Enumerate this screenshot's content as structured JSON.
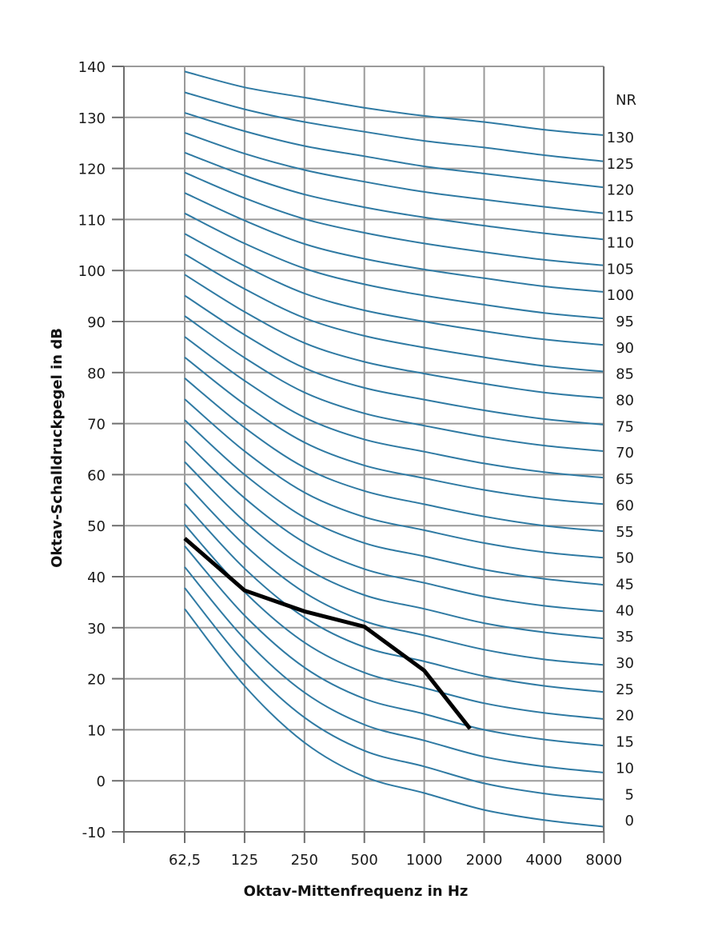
{
  "chart_data": {
    "type": "line",
    "xlabel": "Oktav-Mittenfrequenz in Hz",
    "ylabel": "Oktav-Schalldruckpegel in dB",
    "x_scale": "log2 (octave bands)",
    "x_ticks": [
      "62,5",
      "125",
      "250",
      "500",
      "1000",
      "2000",
      "4000",
      "8000"
    ],
    "x_values": [
      62.5,
      125,
      250,
      500,
      1000,
      2000,
      4000,
      8000
    ],
    "ylim": [
      -10,
      140
    ],
    "y_ticks": [
      140,
      130,
      120,
      110,
      100,
      90,
      80,
      70,
      60,
      50,
      40,
      30,
      20,
      10,
      0,
      -10
    ],
    "grid": true,
    "right_axis_title": "NR",
    "nr_labels": [
      "130",
      "125",
      "120",
      "115",
      "110",
      "105",
      "100",
      "95",
      "90",
      "85",
      "80",
      "75",
      "70",
      "65",
      "60",
      "55",
      "50",
      "45",
      "40",
      "35",
      "30",
      "25",
      "20",
      "15",
      "10",
      "5",
      "0"
    ],
    "nr_curves": [
      {
        "nr": 130,
        "values": [
          139.0,
          135.9,
          133.9,
          131.9,
          130.3,
          129.1,
          127.6,
          126.5
        ]
      },
      {
        "nr": 125,
        "values": [
          134.9,
          131.6,
          129.1,
          127.2,
          125.4,
          124.1,
          122.6,
          121.4
        ]
      },
      {
        "nr": 120,
        "values": [
          130.9,
          127.3,
          124.4,
          122.4,
          120.4,
          119.0,
          117.6,
          116.3
        ]
      },
      {
        "nr": 115,
        "values": [
          127.0,
          122.9,
          119.7,
          117.4,
          115.4,
          113.9,
          112.5,
          111.2
        ]
      },
      {
        "nr": 110,
        "values": [
          123.1,
          118.6,
          114.9,
          112.4,
          110.4,
          108.8,
          107.3,
          106.1
        ]
      },
      {
        "nr": 105,
        "values": [
          119.2,
          114.2,
          110.1,
          107.4,
          105.3,
          103.6,
          102.1,
          101.0
        ]
      },
      {
        "nr": 100,
        "values": [
          115.2,
          109.8,
          105.2,
          102.3,
          100.2,
          98.5,
          96.9,
          95.8
        ]
      },
      {
        "nr": 95,
        "values": [
          111.2,
          105.3,
          100.4,
          97.3,
          95.1,
          93.3,
          91.7,
          90.6
        ]
      },
      {
        "nr": 90,
        "values": [
          107.2,
          100.9,
          95.5,
          92.2,
          90.0,
          88.1,
          86.5,
          85.4
        ]
      },
      {
        "nr": 85,
        "values": [
          103.2,
          96.4,
          90.7,
          87.2,
          84.9,
          83.0,
          81.3,
          80.2
        ]
      },
      {
        "nr": 80,
        "values": [
          99.2,
          91.9,
          85.8,
          82.1,
          79.8,
          77.8,
          76.1,
          75.0
        ]
      },
      {
        "nr": 75,
        "values": [
          95.1,
          87.4,
          80.9,
          77.0,
          74.7,
          72.6,
          70.9,
          69.8
        ]
      },
      {
        "nr": 70,
        "values": [
          91.1,
          82.9,
          76.1,
          72.0,
          69.6,
          67.4,
          65.7,
          64.6
        ]
      },
      {
        "nr": 65,
        "values": [
          87.0,
          78.4,
          71.2,
          66.9,
          64.5,
          62.2,
          60.5,
          59.4
        ]
      },
      {
        "nr": 60,
        "values": [
          83.0,
          73.8,
          66.3,
          61.8,
          59.3,
          57.0,
          55.3,
          54.2
        ]
      },
      {
        "nr": 55,
        "values": [
          78.9,
          69.2,
          61.4,
          56.8,
          54.2,
          51.8,
          50.0,
          48.9
        ]
      },
      {
        "nr": 50,
        "values": [
          74.8,
          64.6,
          56.5,
          51.7,
          49.1,
          46.6,
          44.8,
          43.7
        ]
      },
      {
        "nr": 45,
        "values": [
          70.7,
          60.0,
          51.6,
          46.6,
          44.0,
          41.4,
          39.6,
          38.4
        ]
      },
      {
        "nr": 40,
        "values": [
          66.6,
          55.4,
          46.7,
          41.5,
          38.8,
          36.1,
          34.3,
          33.2
        ]
      },
      {
        "nr": 35,
        "values": [
          62.5,
          50.8,
          41.8,
          36.4,
          33.7,
          30.9,
          29.1,
          27.9
        ]
      },
      {
        "nr": 30,
        "values": [
          58.4,
          46.2,
          36.9,
          31.3,
          28.5,
          25.7,
          23.8,
          22.7
        ]
      },
      {
        "nr": 25,
        "values": [
          54.3,
          41.6,
          32.0,
          26.2,
          23.4,
          20.5,
          18.6,
          17.4
        ]
      },
      {
        "nr": 20,
        "values": [
          50.2,
          37.0,
          27.1,
          21.2,
          18.2,
          15.2,
          13.3,
          12.1
        ]
      },
      {
        "nr": 15,
        "values": [
          46.0,
          32.4,
          22.2,
          16.1,
          13.1,
          10.0,
          8.1,
          6.9
        ]
      },
      {
        "nr": 10,
        "values": [
          41.9,
          27.8,
          17.3,
          11.0,
          7.9,
          4.7,
          2.8,
          1.6
        ]
      },
      {
        "nr": 5,
        "values": [
          37.8,
          23.2,
          12.4,
          5.9,
          2.8,
          -0.5,
          -2.5,
          -3.7
        ]
      },
      {
        "nr": 0,
        "values": [
          33.7,
          18.6,
          7.5,
          0.8,
          -2.4,
          -5.7,
          -7.7,
          -9.0
        ]
      }
    ],
    "series": [
      {
        "x": [
          62.5,
          125,
          250,
          500,
          1000,
          1700
        ],
        "values": [
          47.5,
          37.3,
          33.2,
          30.2,
          21.6,
          10.2
        ]
      }
    ],
    "colors": {
      "nr_curve": "#2f7aa3",
      "measured": "#000000",
      "grid": "#9a9a9a"
    }
  }
}
